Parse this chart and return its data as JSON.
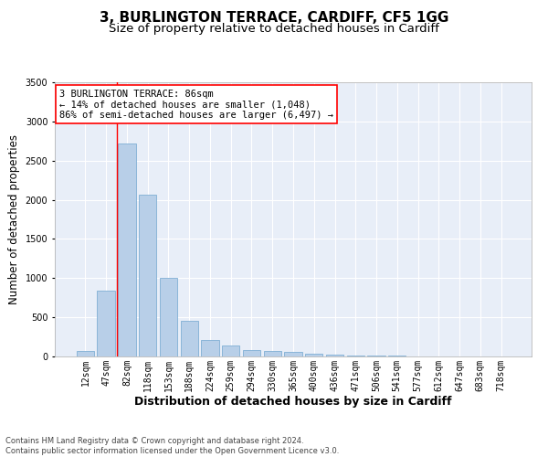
{
  "title_line1": "3, BURLINGTON TERRACE, CARDIFF, CF5 1GG",
  "title_line2": "Size of property relative to detached houses in Cardiff",
  "xlabel": "Distribution of detached houses by size in Cardiff",
  "ylabel": "Number of detached properties",
  "categories": [
    "12sqm",
    "47sqm",
    "82sqm",
    "118sqm",
    "153sqm",
    "188sqm",
    "224sqm",
    "259sqm",
    "294sqm",
    "330sqm",
    "365sqm",
    "400sqm",
    "436sqm",
    "471sqm",
    "506sqm",
    "541sqm",
    "577sqm",
    "612sqm",
    "647sqm",
    "683sqm",
    "718sqm"
  ],
  "values": [
    70,
    840,
    2720,
    2060,
    1000,
    460,
    210,
    135,
    80,
    65,
    55,
    30,
    25,
    15,
    10,
    8,
    5,
    3,
    2,
    1,
    1
  ],
  "bar_color": "#b8cfe8",
  "bar_edge_color": "#7fafd4",
  "background_color": "#e8eef8",
  "grid_color": "#ffffff",
  "annotation_line1": "3 BURLINGTON TERRACE: 86sqm",
  "annotation_line2": "← 14% of detached houses are smaller (1,048)",
  "annotation_line3": "86% of semi-detached houses are larger (6,497) →",
  "red_line_x": 1.5,
  "ylim": [
    0,
    3500
  ],
  "yticks": [
    0,
    500,
    1000,
    1500,
    2000,
    2500,
    3000,
    3500
  ],
  "footer_line1": "Contains HM Land Registry data © Crown copyright and database right 2024.",
  "footer_line2": "Contains public sector information licensed under the Open Government Licence v3.0.",
  "title_fontsize": 11,
  "subtitle_fontsize": 9.5,
  "tick_fontsize": 7,
  "ylabel_fontsize": 8.5,
  "xlabel_fontsize": 9,
  "annot_fontsize": 7.5,
  "footer_fontsize": 6
}
